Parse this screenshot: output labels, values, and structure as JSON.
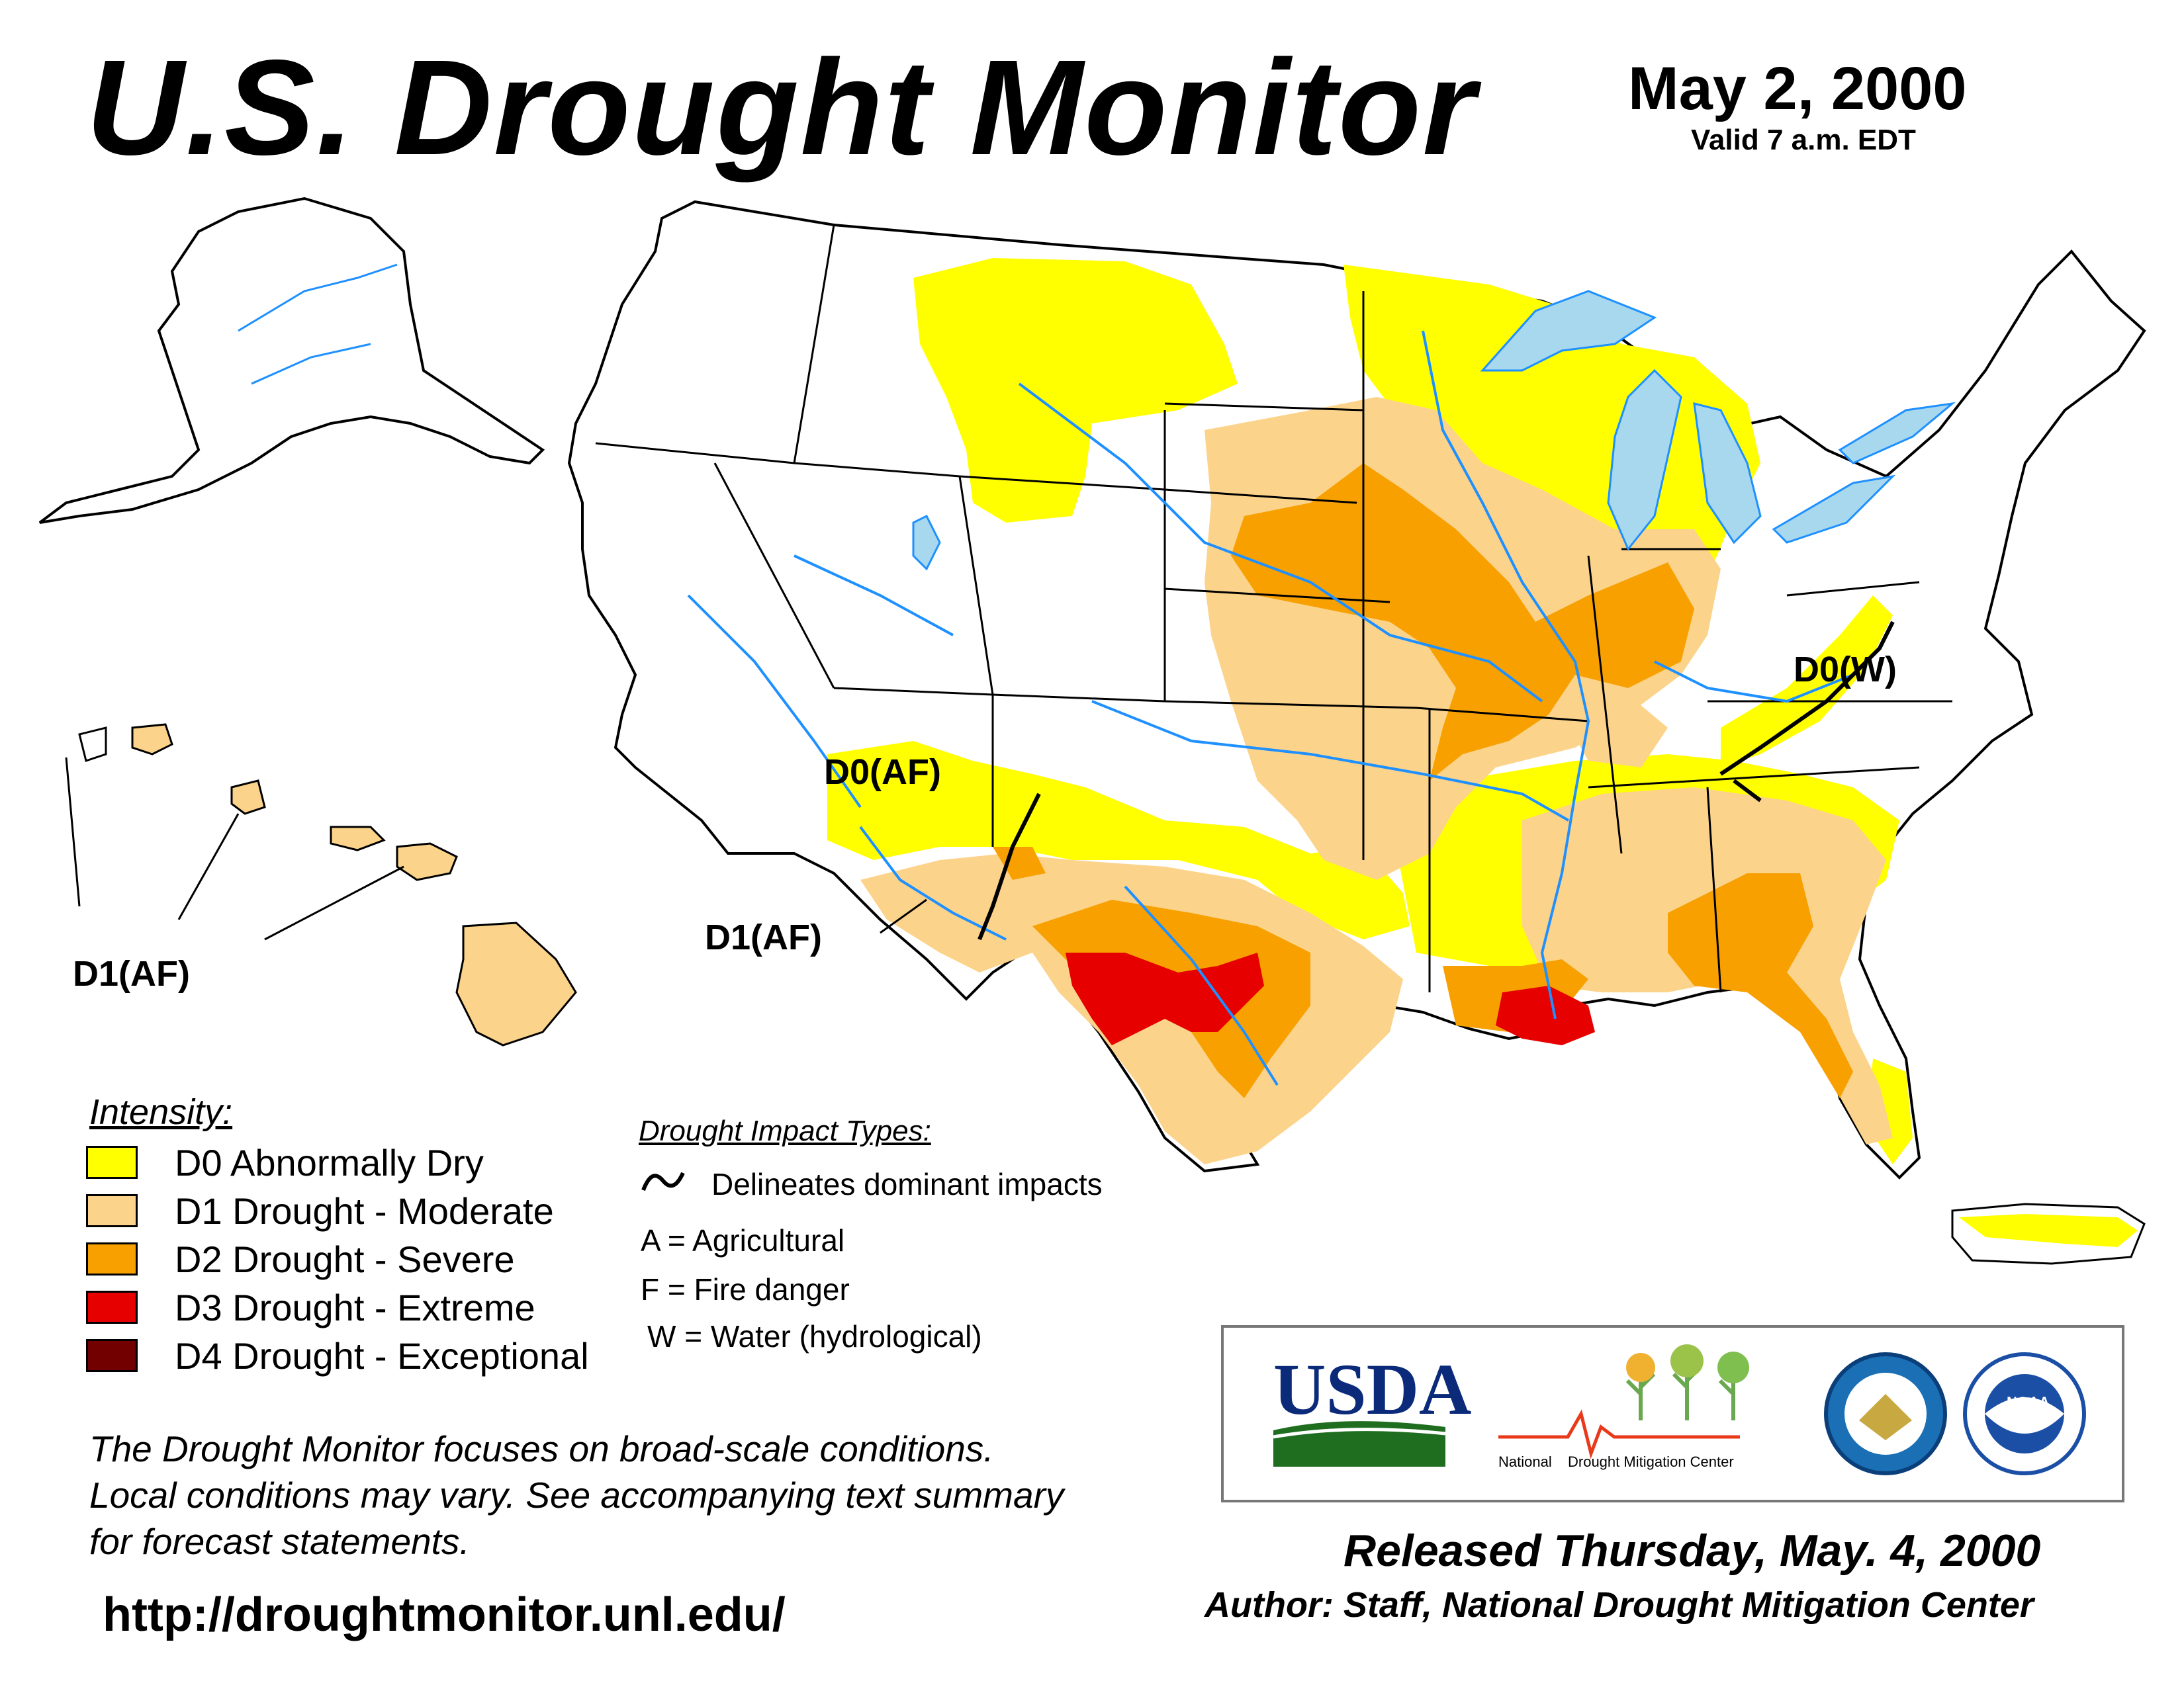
{
  "header": {
    "title": "U.S. Drought Monitor",
    "date": "May 2, 2000",
    "valid": "Valid 7 a.m. EDT"
  },
  "map": {
    "labels": {
      "d0_af": "D0(AF)",
      "d1_af_southwest": "D1(AF)",
      "d1_af_hawaii": "D1(AF)",
      "d0_w": "D0(W)"
    },
    "colors": {
      "water": "#a8d8ee",
      "rivers": "#1e90ff",
      "county_lines": "#b0b0b0",
      "state_lines": "#000000"
    }
  },
  "legend": {
    "title": "Intensity:",
    "items": [
      {
        "code": "D0",
        "label": "D0 Abnormally Dry",
        "color": "#ffff00"
      },
      {
        "code": "D1",
        "label": "D1 Drought - Moderate",
        "color": "#fcd38a"
      },
      {
        "code": "D2",
        "label": "D2 Drought - Severe",
        "color": "#f7a000"
      },
      {
        "code": "D3",
        "label": "D3 Drought - Extreme",
        "color": "#e60000"
      },
      {
        "code": "D4",
        "label": "D4 Drought - Exceptional",
        "color": "#730000"
      }
    ]
  },
  "impacts": {
    "title": "Drought Impact Types:",
    "delineates": "Delineates dominant impacts",
    "types": [
      "A = Agricultural",
      "F = Fire danger",
      "W = Water (hydrological)"
    ]
  },
  "note": {
    "lines": [
      "The Drought Monitor focuses on broad-scale conditions.",
      "Local conditions may vary. See accompanying text summary",
      "for forecast statements."
    ]
  },
  "url": "http://droughtmonitor.unl.edu/",
  "logos": {
    "usda": "USDA",
    "ndmc_part1": "National",
    "ndmc_part2": "Drought Mitigation Center",
    "noaa": "NOAA"
  },
  "footer": {
    "released": "Released Thursday, May. 4, 2000",
    "author": "Author: Staff, National Drought Mitigation Center"
  }
}
